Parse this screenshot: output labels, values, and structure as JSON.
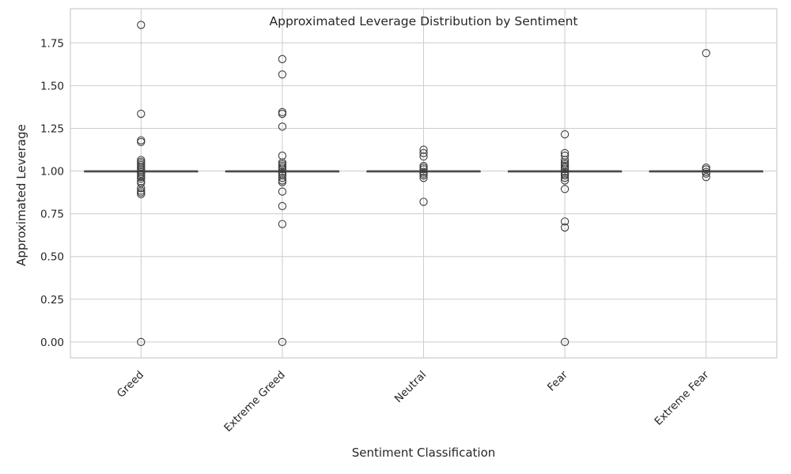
{
  "chart_data": {
    "type": "box",
    "title": "Approximated Leverage Distribution by Sentiment",
    "xlabel": "Sentiment Classification",
    "ylabel": "Approximated Leverage",
    "ylim": [
      -0.093,
      1.95
    ],
    "yticks": [
      0.0,
      0.25,
      0.5,
      0.75,
      1.0,
      1.25,
      1.5,
      1.75
    ],
    "ytick_labels": [
      "0.00",
      "0.25",
      "0.50",
      "0.75",
      "1.00",
      "1.25",
      "1.50",
      "1.75"
    ],
    "grid": true,
    "categories": [
      "Greed",
      "Extreme Greed",
      "Neutral",
      "Fear",
      "Extreme Fear"
    ],
    "boxes": [
      {
        "category": "Greed",
        "q1": 1.0,
        "median": 1.0,
        "q3": 1.0,
        "whisker_low": 1.0,
        "whisker_high": 1.0,
        "outliers": [
          1.855,
          1.335,
          1.18,
          1.17,
          1.065,
          1.055,
          1.045,
          1.035,
          1.025,
          1.015,
          1.005,
          0.995,
          0.985,
          0.975,
          0.965,
          0.955,
          0.94,
          0.93,
          0.9,
          0.885,
          0.875,
          0.865,
          0.0
        ]
      },
      {
        "category": "Extreme Greed",
        "q1": 1.0,
        "median": 1.0,
        "q3": 1.0,
        "whisker_low": 1.0,
        "whisker_high": 1.0,
        "outliers": [
          1.655,
          1.565,
          1.345,
          1.335,
          1.26,
          1.09,
          1.05,
          1.04,
          1.03,
          1.02,
          1.01,
          0.995,
          0.985,
          0.975,
          0.96,
          0.945,
          0.935,
          0.88,
          0.795,
          0.69,
          0.0
        ]
      },
      {
        "category": "Neutral",
        "q1": 1.0,
        "median": 1.0,
        "q3": 1.0,
        "whisker_low": 1.0,
        "whisker_high": 1.0,
        "outliers": [
          1.125,
          1.105,
          1.085,
          1.03,
          1.02,
          1.01,
          0.995,
          0.985,
          0.975,
          0.96,
          0.82
        ]
      },
      {
        "category": "Fear",
        "q1": 1.0,
        "median": 1.0,
        "q3": 1.0,
        "whisker_low": 1.0,
        "whisker_high": 1.0,
        "outliers": [
          1.215,
          1.105,
          1.09,
          1.065,
          1.05,
          1.04,
          1.03,
          1.02,
          1.01,
          0.995,
          0.985,
          0.975,
          0.96,
          0.945,
          0.895,
          0.705,
          0.67,
          0.0
        ]
      },
      {
        "category": "Extreme Fear",
        "q1": 1.0,
        "median": 1.0,
        "q3": 1.0,
        "whisker_low": 1.0,
        "whisker_high": 1.0,
        "outliers": [
          1.69,
          1.02,
          1.01,
          0.995,
          0.985,
          0.965
        ]
      }
    ]
  }
}
